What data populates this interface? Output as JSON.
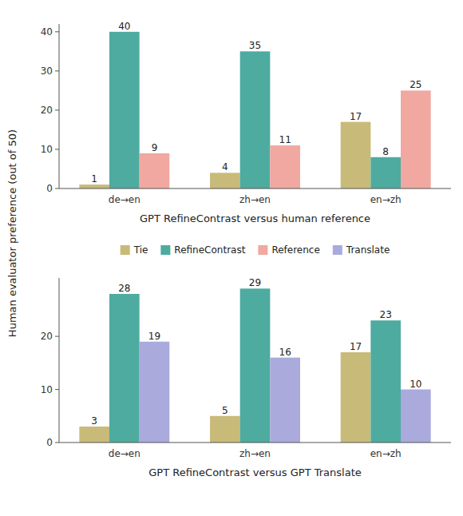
{
  "chart_data": [
    {
      "type": "bar",
      "x_label": "GPT RefineContrast versus human reference",
      "y_label": "Human evaluator preference (out of 50)",
      "categories": [
        "de→en",
        "zh→en",
        "en→zh"
      ],
      "series": [
        {
          "name": "Tie",
          "color": "#C8BA78",
          "values": [
            1,
            4,
            17
          ]
        },
        {
          "name": "RefineContrast",
          "color": "#4DABA0",
          "values": [
            40,
            35,
            8
          ]
        },
        {
          "name": "Reference",
          "color": "#F0A8A0",
          "values": [
            9,
            11,
            25
          ]
        }
      ],
      "ylim": [
        0,
        42
      ],
      "yticks": [
        0,
        10,
        20,
        30,
        40
      ],
      "grid": false,
      "data_labels": true,
      "legend": "bottom"
    },
    {
      "type": "bar",
      "x_label": "GPT RefineContrast versus GPT Translate",
      "categories": [
        "de→en",
        "zh→en",
        "en→zh"
      ],
      "series": [
        {
          "name": "Tie",
          "color": "#C8BA78",
          "values": [
            3,
            5,
            17
          ]
        },
        {
          "name": "RefineContrast",
          "color": "#4DABA0",
          "values": [
            28,
            29,
            23
          ]
        },
        {
          "name": "Translate",
          "color": "#AAAADD",
          "values": [
            19,
            16,
            10
          ]
        }
      ],
      "ylim": [
        0,
        31
      ],
      "yticks": [
        0,
        10,
        20
      ],
      "grid": false,
      "data_labels": true
    }
  ]
}
